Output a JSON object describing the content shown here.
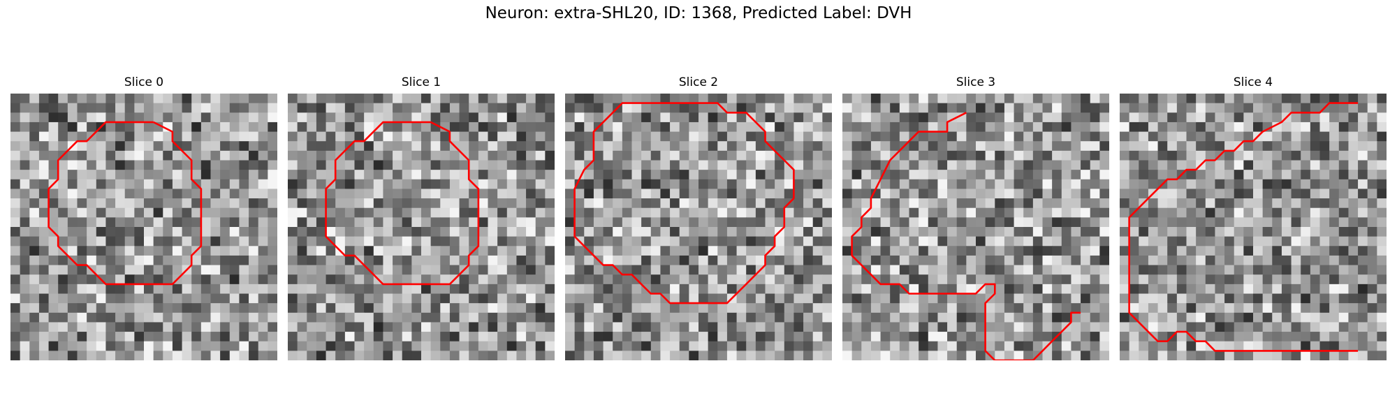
{
  "figure": {
    "title": "Neuron: extra-SHL20, ID: 1368, Predicted Label: DVH",
    "contour_color": "#ff0000"
  },
  "panels": [
    {
      "title": "Slice 0",
      "contour": [
        [
          15,
          3
        ],
        [
          10,
          3
        ],
        [
          8,
          5
        ],
        [
          7,
          5
        ],
        [
          5,
          7
        ],
        [
          5,
          9
        ],
        [
          4,
          10
        ],
        [
          4,
          14
        ],
        [
          5,
          15
        ],
        [
          5,
          16
        ],
        [
          7,
          18
        ],
        [
          8,
          18
        ],
        [
          10,
          20
        ],
        [
          17,
          20
        ],
        [
          19,
          18
        ],
        [
          19,
          17
        ],
        [
          20,
          16
        ],
        [
          20,
          10
        ],
        [
          19,
          9
        ],
        [
          19,
          7
        ],
        [
          17,
          5
        ],
        [
          17,
          4
        ],
        [
          15,
          3
        ]
      ]
    },
    {
      "title": "Slice 1",
      "contour": [
        [
          15,
          3
        ],
        [
          10,
          3
        ],
        [
          8,
          5
        ],
        [
          7,
          5
        ],
        [
          5,
          7
        ],
        [
          5,
          9
        ],
        [
          4,
          10
        ],
        [
          4,
          15
        ],
        [
          5,
          16
        ],
        [
          6,
          17
        ],
        [
          7,
          17
        ],
        [
          9,
          19
        ],
        [
          10,
          20
        ],
        [
          17,
          20
        ],
        [
          19,
          18
        ],
        [
          19,
          17
        ],
        [
          20,
          16
        ],
        [
          20,
          10
        ],
        [
          19,
          9
        ],
        [
          19,
          7
        ],
        [
          17,
          5
        ],
        [
          17,
          4
        ],
        [
          15,
          3
        ]
      ]
    },
    {
      "title": "Slice 2",
      "contour": [
        [
          11,
          1
        ],
        [
          6,
          1
        ],
        [
          4,
          3
        ],
        [
          3,
          4
        ],
        [
          3,
          7
        ],
        [
          2,
          8
        ],
        [
          1,
          10
        ],
        [
          1,
          15
        ],
        [
          2,
          16
        ],
        [
          3,
          17
        ],
        [
          4,
          18
        ],
        [
          5,
          18
        ],
        [
          6,
          19
        ],
        [
          7,
          19
        ],
        [
          8,
          20
        ],
        [
          9,
          21
        ],
        [
          10,
          21
        ],
        [
          11,
          22
        ],
        [
          17,
          22
        ],
        [
          19,
          20
        ],
        [
          20,
          19
        ],
        [
          21,
          18
        ],
        [
          21,
          17
        ],
        [
          22,
          16
        ],
        [
          22,
          15
        ],
        [
          23,
          14
        ],
        [
          23,
          12
        ],
        [
          24,
          11
        ],
        [
          24,
          8
        ],
        [
          23,
          7
        ],
        [
          22,
          6
        ],
        [
          21,
          5
        ],
        [
          21,
          4
        ],
        [
          20,
          3
        ],
        [
          19,
          2
        ],
        [
          17,
          2
        ],
        [
          16,
          1
        ],
        [
          11,
          1
        ]
      ]
    },
    {
      "title": "Slice 3",
      "contour": [
        [
          13,
          2
        ],
        [
          11,
          3
        ],
        [
          11,
          4
        ],
        [
          10,
          4
        ],
        [
          8,
          4
        ],
        [
          7,
          5
        ],
        [
          5,
          7
        ],
        [
          4,
          9
        ],
        [
          3,
          11
        ],
        [
          3,
          12
        ],
        [
          2,
          13
        ],
        [
          2,
          14
        ],
        [
          1,
          15
        ],
        [
          1,
          17
        ],
        [
          2,
          18
        ],
        [
          3,
          19
        ],
        [
          4,
          20
        ],
        [
          6,
          20
        ],
        [
          7,
          21
        ],
        [
          8,
          21
        ],
        [
          14,
          21
        ],
        [
          15,
          20
        ],
        [
          16,
          20
        ],
        [
          16,
          21
        ],
        [
          15,
          22
        ],
        [
          15,
          27
        ],
        [
          16,
          28
        ],
        [
          20,
          28
        ],
        [
          21,
          27
        ],
        [
          22,
          26
        ],
        [
          23,
          25
        ],
        [
          24,
          24
        ],
        [
          24,
          23
        ],
        [
          25,
          23
        ]
      ]
    },
    {
      "title": "Slice 4",
      "contour": [
        [
          25,
          1
        ],
        [
          22,
          1
        ],
        [
          21,
          2
        ],
        [
          18,
          2
        ],
        [
          17,
          3
        ],
        [
          15,
          4
        ],
        [
          14,
          5
        ],
        [
          13,
          5
        ],
        [
          12,
          6
        ],
        [
          11,
          6
        ],
        [
          10,
          7
        ],
        [
          9,
          7
        ],
        [
          8,
          8
        ],
        [
          7,
          8
        ],
        [
          6,
          9
        ],
        [
          5,
          9
        ],
        [
          4,
          10
        ],
        [
          3,
          11
        ],
        [
          2,
          12
        ],
        [
          1,
          13
        ],
        [
          1,
          15
        ],
        [
          1,
          23
        ],
        [
          2,
          24
        ],
        [
          3,
          25
        ],
        [
          4,
          26
        ],
        [
          5,
          26
        ],
        [
          6,
          25
        ],
        [
          7,
          25
        ],
        [
          8,
          26
        ],
        [
          9,
          26
        ],
        [
          10,
          27
        ],
        [
          15,
          27
        ],
        [
          20,
          27
        ],
        [
          25,
          27
        ]
      ]
    }
  ]
}
